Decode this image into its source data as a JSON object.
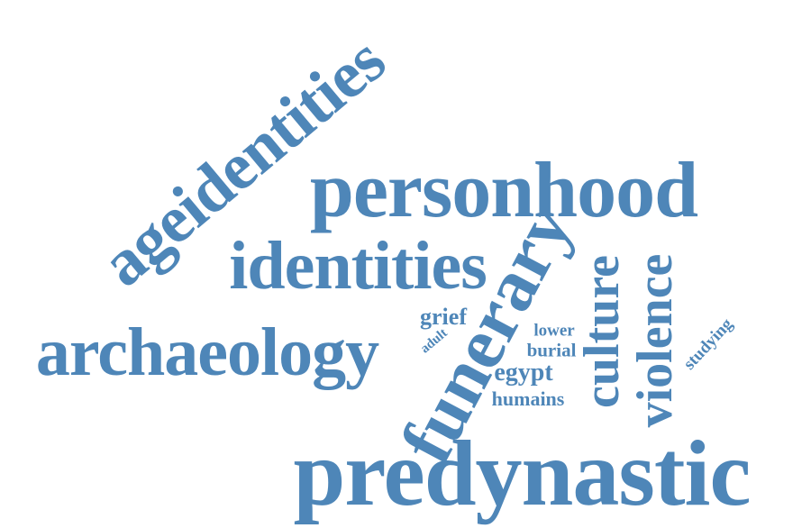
{
  "style": {
    "word_color": "#4e86b8",
    "background": "#ffffff"
  },
  "words": {
    "ageidentities": "ageidentities",
    "personhood": "personhood",
    "identities": "identities",
    "archaeology": "archaeology",
    "funerary": "funerary",
    "culture": "culture",
    "violence": "violence",
    "predynastic": "predynastic",
    "grief": "grief",
    "adult": "adult",
    "lower": "lower",
    "burial": "burial",
    "egypt": "egypt",
    "humains": "humains",
    "studying": "studying"
  }
}
